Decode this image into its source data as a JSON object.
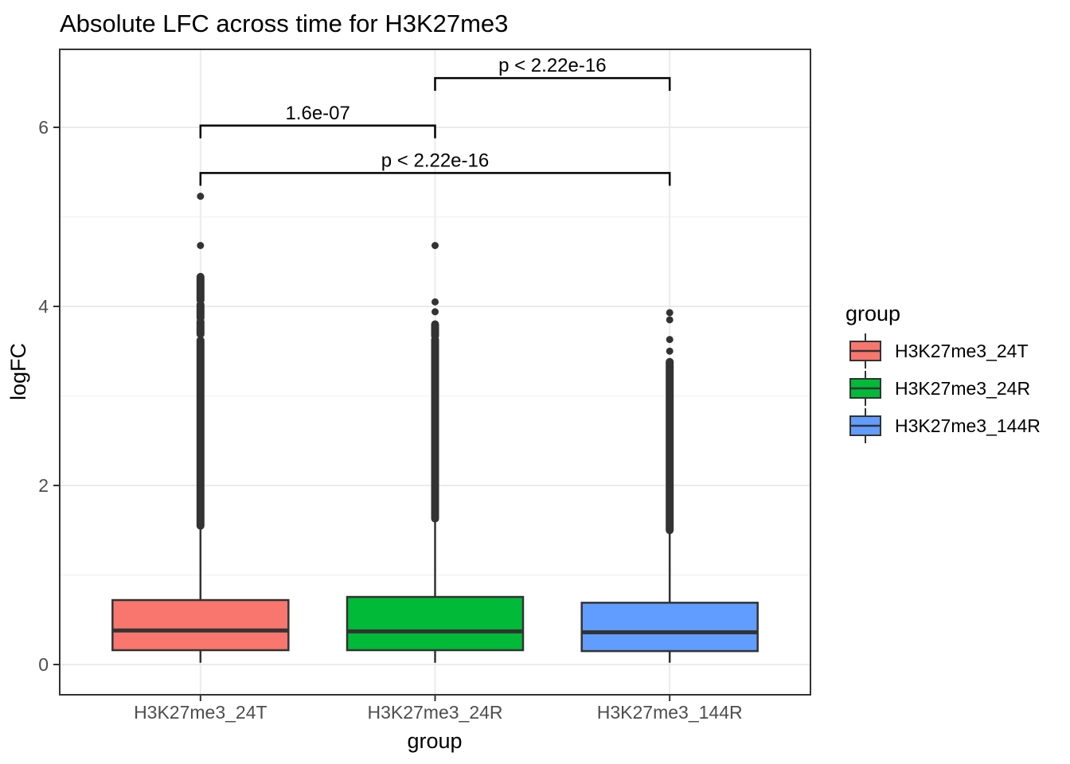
{
  "title": "Absolute LFC across time for H3K27me3",
  "chart_data": {
    "type": "boxplot",
    "title": "Absolute LFC across time for H3K27me3",
    "xlabel": "group",
    "ylabel": "logFC",
    "grid": "on",
    "legend": {
      "title": "group",
      "position": "right",
      "entries": [
        "H3K27me3_24T",
        "H3K27me3_24R",
        "H3K27me3_144R"
      ]
    },
    "y_axis": {
      "ticks": [
        0,
        2,
        4,
        6
      ],
      "tick_labels": [
        "0",
        "2",
        "4",
        "6"
      ],
      "minor_ticks": [
        1,
        3,
        5
      ],
      "range": [
        -0.34,
        6.87
      ]
    },
    "categories": [
      "H3K27me3_24T",
      "H3K27me3_24R",
      "H3K27me3_144R"
    ],
    "series": [
      {
        "name": "H3K27me3_24T",
        "color": "#F8766D",
        "q1": 0.16,
        "median": 0.38,
        "q3": 0.72,
        "whisker_low": 0.02,
        "whisker_high": 1.51,
        "outlier_ranges": [
          [
            1.55,
            3.62
          ],
          [
            3.69,
            3.83
          ],
          [
            3.87,
            4.02
          ],
          [
            4.07,
            4.33
          ]
        ],
        "outlier_points": [
          4.68,
          5.23
        ]
      },
      {
        "name": "H3K27me3_24R",
        "color": "#00BA38",
        "q1": 0.16,
        "median": 0.37,
        "q3": 0.755,
        "whisker_low": 0.02,
        "whisker_high": 1.6,
        "outlier_ranges": [
          [
            1.63,
            3.63
          ],
          [
            3.67,
            3.8
          ]
        ],
        "outlier_points": [
          3.94,
          4.05,
          4.68
        ]
      },
      {
        "name": "H3K27me3_144R",
        "color": "#619CFF",
        "q1": 0.15,
        "median": 0.36,
        "q3": 0.69,
        "whisker_low": 0.02,
        "whisker_high": 1.5,
        "outlier_ranges": [
          [
            1.5,
            3.38
          ]
        ],
        "outlier_points": [
          3.5,
          3.63,
          3.85,
          3.93
        ]
      }
    ],
    "annotations": [
      {
        "label": "1.6e-07",
        "from": 0,
        "to": 1,
        "y": 6.02
      },
      {
        "label": "p < 2.22e-16",
        "from": 1,
        "to": 2,
        "y": 6.55
      },
      {
        "label": "p < 2.22e-16",
        "from": 0,
        "to": 2,
        "y": 5.49
      }
    ],
    "colors": {
      "box_stroke": "#333333",
      "point": "#333333",
      "bracket": "#000000",
      "grid_major": "#EBEBEB",
      "grid_minor": "#F4F4F4",
      "axis_text": "#4D4D4D",
      "panel_border": "#333333",
      "background": "#FFFFFF"
    }
  }
}
